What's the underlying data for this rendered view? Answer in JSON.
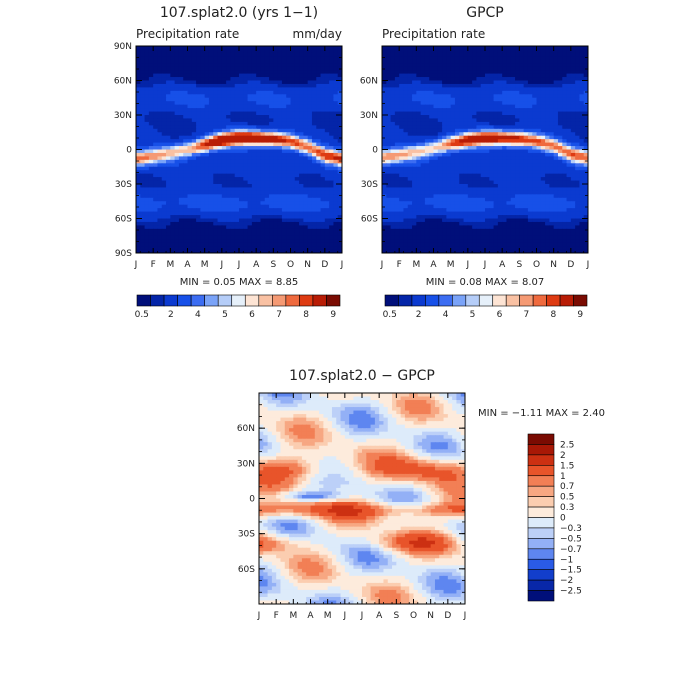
{
  "colors": {
    "abs_scale": [
      "#000f7a",
      "#0425a8",
      "#0b3ad0",
      "#1750e8",
      "#3c6df2",
      "#7aa3f8",
      "#b5cdf8",
      "#e6f0fa",
      "#fde4d4",
      "#f9c1a3",
      "#f59a74",
      "#ef6a3e",
      "#de3b12",
      "#b81c05",
      "#7a0b02"
    ],
    "diff_scale": [
      "#000f7a",
      "#0827a8",
      "#123ecb",
      "#2a5be6",
      "#5e86f0",
      "#93b0f6",
      "#bcd0f8",
      "#ddebfa",
      "#fdebdc",
      "#fbcdb0",
      "#f7a782",
      "#f27f55",
      "#e8542a",
      "#cc3012",
      "#a81806",
      "#7a0b02"
    ]
  },
  "chart_data": [
    {
      "type": "heatmap",
      "title": "107.splat2.0 (yrs 1−1)",
      "subtitle_left": "Precipitation rate",
      "subtitle_right": "mm/day",
      "x_tick_labels": [
        "J",
        "F",
        "M",
        "A",
        "M",
        "J",
        "J",
        "A",
        "S",
        "O",
        "N",
        "D",
        "J"
      ],
      "y_tick_labels": [
        "90N",
        "60N",
        "30N",
        "0",
        "30S",
        "60S",
        "90S"
      ],
      "y_tick_values": [
        90,
        60,
        30,
        0,
        -30,
        -60,
        -90
      ],
      "ylim": [
        -90,
        90
      ],
      "stats_text": "MIN =    0.05 MAX =    8.85",
      "min": 0.05,
      "max": 8.85,
      "colorbar_labels": [
        "0.5",
        "2",
        "4",
        "5",
        "6",
        "7",
        "8",
        "9"
      ],
      "colorbar_levels": [
        0.5,
        1,
        2,
        3,
        4,
        4.5,
        5,
        5.5,
        6,
        6.5,
        7,
        7.5,
        8,
        9
      ],
      "field": {
        "months": [
          "J",
          "F",
          "M",
          "A",
          "M",
          "J",
          "J",
          "A",
          "S",
          "O",
          "N",
          "D"
        ],
        "latitudes": [
          90,
          75,
          60,
          45,
          30,
          15,
          10,
          5,
          0,
          -5,
          -10,
          -15,
          -30,
          -45,
          -60,
          -75,
          -90
        ],
        "itcz_lat_by_month": [
          -8,
          -6,
          -3,
          0,
          4,
          8,
          10,
          10,
          9,
          7,
          2,
          -5
        ],
        "peak_mm_day_by_month": [
          6.5,
          5.5,
          5.0,
          5.5,
          7.5,
          8.5,
          8.8,
          8.6,
          8.0,
          7.0,
          6.0,
          6.5
        ]
      }
    },
    {
      "type": "heatmap",
      "title": "GPCP",
      "subtitle_left": "Precipitation rate",
      "subtitle_right": "",
      "x_tick_labels": [
        "J",
        "F",
        "M",
        "A",
        "M",
        "J",
        "J",
        "A",
        "S",
        "O",
        "N",
        "D",
        "J"
      ],
      "y_tick_labels": [
        "60N",
        "30N",
        "0",
        "30S",
        "60S"
      ],
      "y_tick_values": [
        60,
        30,
        0,
        -30,
        -60
      ],
      "ylim": [
        -90,
        90
      ],
      "stats_text": "MIN =    0.08 MAX =    8.07",
      "min": 0.08,
      "max": 8.07,
      "colorbar_labels": [
        "0.5",
        "2",
        "4",
        "5",
        "6",
        "7",
        "8",
        "9"
      ],
      "colorbar_levels": [
        0.5,
        1,
        2,
        3,
        4,
        4.5,
        5,
        5.5,
        6,
        6.5,
        7,
        7.5,
        8,
        9
      ],
      "field": {
        "months": [
          "J",
          "F",
          "M",
          "A",
          "M",
          "J",
          "J",
          "A",
          "S",
          "O",
          "N",
          "D"
        ],
        "latitudes": [
          90,
          75,
          60,
          45,
          30,
          15,
          10,
          5,
          0,
          -5,
          -10,
          -15,
          -30,
          -45,
          -60,
          -75,
          -90
        ],
        "itcz_lat_by_month": [
          -7,
          -5,
          -2,
          1,
          5,
          8,
          10,
          10,
          9,
          7,
          3,
          -4
        ],
        "peak_mm_day_by_month": [
          6.0,
          5.2,
          4.8,
          5.2,
          6.8,
          7.8,
          8.0,
          8.0,
          7.6,
          6.8,
          6.0,
          6.0
        ]
      }
    },
    {
      "type": "heatmap",
      "title": "107.splat2.0 − GPCP",
      "x_tick_labels": [
        "J",
        "F",
        "M",
        "A",
        "M",
        "J",
        "J",
        "A",
        "S",
        "O",
        "N",
        "D",
        "J"
      ],
      "y_tick_labels": [
        "60N",
        "30N",
        "0",
        "30S",
        "60S"
      ],
      "y_tick_values": [
        60,
        30,
        0,
        -30,
        -60
      ],
      "ylim": [
        -90,
        90
      ],
      "stats_text": "MIN =   −1.11 MAX =    2.40",
      "min": -1.11,
      "max": 2.4,
      "colorbar_labels": [
        "2.5",
        "2",
        "1.5",
        "1",
        "0.7",
        "0.5",
        "0.3",
        "0",
        "−0.3",
        "−0.5",
        "−0.7",
        "−1",
        "−1.5",
        "−2",
        "−2.5"
      ],
      "colorbar_levels": [
        -2.5,
        -2,
        -1.5,
        -1,
        -0.7,
        -0.5,
        -0.3,
        0,
        0.3,
        0.5,
        0.7,
        1,
        1.5,
        2,
        2.5
      ]
    }
  ]
}
